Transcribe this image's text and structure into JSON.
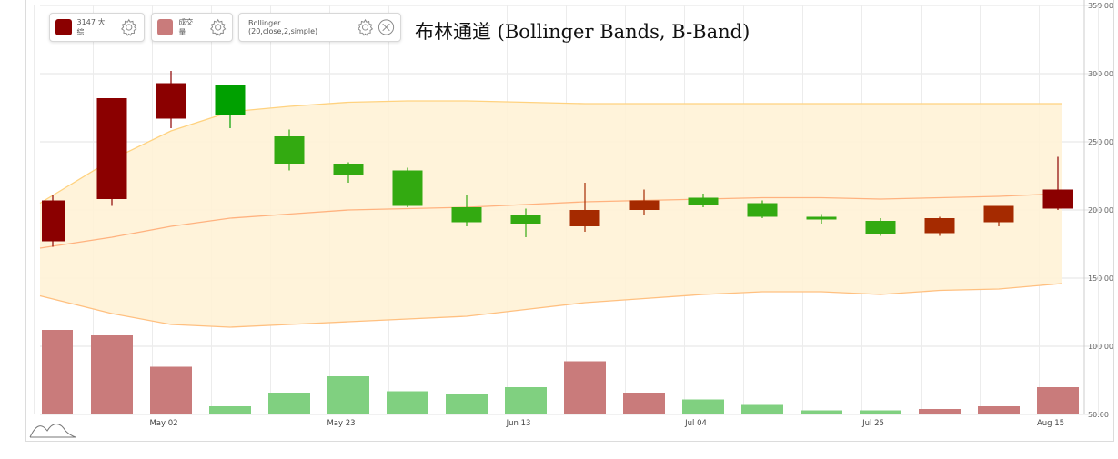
{
  "legend": {
    "price_label": "3147 大綜",
    "volume_label": "成交量",
    "bollinger_label": "Bollinger (20,close,2,simple)"
  },
  "colors": {
    "price_swatch": "#8b0000",
    "volume_swatch": "#c97b7b",
    "up_candle": "#a52a00",
    "up_candle_dark": "#8b0000",
    "down_candle": "#33aa11",
    "down_candle_bright": "#00a000",
    "vol_up": "#c97b7b",
    "vol_down": "#80d080",
    "band_fill": "#fff2d6",
    "upper_band": "#ffd27f",
    "middle_band": "#ffb27f",
    "lower_band": "#ffc080"
  },
  "chart_data": {
    "type": "candlestick",
    "title": "布林通道 (Bollinger Bands, B-Band)",
    "y_ticks": [
      "50.00",
      "100.00",
      "150.00",
      "200.00",
      "250.00",
      "300.00",
      "350.00"
    ],
    "ylim": [
      50,
      350
    ],
    "x_tick_labels": [
      "May 02",
      "May 23",
      "Jun 13",
      "Jul 04",
      "Jul 25",
      "Aug 15"
    ],
    "x_tick_index": [
      2,
      5,
      8,
      11,
      14,
      17
    ],
    "candles": [
      {
        "open": 177,
        "close": 207,
        "high": 211,
        "low": 173,
        "vol": 112,
        "up": true
      },
      {
        "open": 208,
        "close": 282,
        "high": 282,
        "low": 203,
        "vol": 108,
        "up": true
      },
      {
        "open": 267,
        "close": 293,
        "high": 302,
        "low": 260,
        "vol": 85,
        "up": true
      },
      {
        "open": 292,
        "close": 270,
        "high": 292,
        "low": 260,
        "vol": 56,
        "up": false
      },
      {
        "open": 254,
        "close": 234,
        "high": 259,
        "low": 229,
        "vol": 66,
        "up": false
      },
      {
        "open": 234,
        "close": 226,
        "high": 235,
        "low": 220,
        "vol": 78,
        "up": false
      },
      {
        "open": 229,
        "close": 203,
        "high": 231,
        "low": 202,
        "vol": 67,
        "up": false
      },
      {
        "open": 202,
        "close": 191,
        "high": 211,
        "low": 188,
        "vol": 65,
        "up": false
      },
      {
        "open": 196,
        "close": 190,
        "high": 201,
        "low": 180,
        "vol": 70,
        "up": false
      },
      {
        "open": 188,
        "close": 200,
        "high": 220,
        "low": 184,
        "vol": 89,
        "up": true
      },
      {
        "open": 200,
        "close": 207,
        "high": 215,
        "low": 196,
        "vol": 66,
        "up": true
      },
      {
        "open": 209,
        "close": 204,
        "high": 212,
        "low": 202,
        "vol": 61,
        "up": false
      },
      {
        "open": 205,
        "close": 195,
        "high": 207,
        "low": 194,
        "vol": 57,
        "up": false
      },
      {
        "open": 195,
        "close": 193,
        "high": 197,
        "low": 190,
        "vol": 53,
        "up": false
      },
      {
        "open": 192,
        "close": 182,
        "high": 194,
        "low": 181,
        "vol": 53,
        "up": false
      },
      {
        "open": 183,
        "close": 194,
        "high": 195,
        "low": 181,
        "vol": 54,
        "up": true
      },
      {
        "open": 191,
        "close": 203,
        "high": 203,
        "low": 188,
        "vol": 56,
        "up": true
      },
      {
        "open": 201,
        "close": 215,
        "high": 239,
        "low": 200,
        "vol": 70,
        "up": true
      }
    ],
    "upper_band": [
      205,
      237,
      258,
      272,
      276,
      279,
      280,
      280,
      279,
      278,
      278,
      278,
      278,
      278,
      278,
      278,
      278,
      278
    ],
    "middle_band": [
      172,
      180,
      188,
      194,
      197,
      200,
      201,
      202,
      204,
      206,
      207,
      208,
      209,
      209,
      208,
      209,
      210,
      212
    ],
    "lower_band": [
      137,
      124,
      116,
      114,
      116,
      118,
      120,
      122,
      127,
      132,
      135,
      138,
      140,
      140,
      138,
      141,
      142,
      146
    ]
  }
}
